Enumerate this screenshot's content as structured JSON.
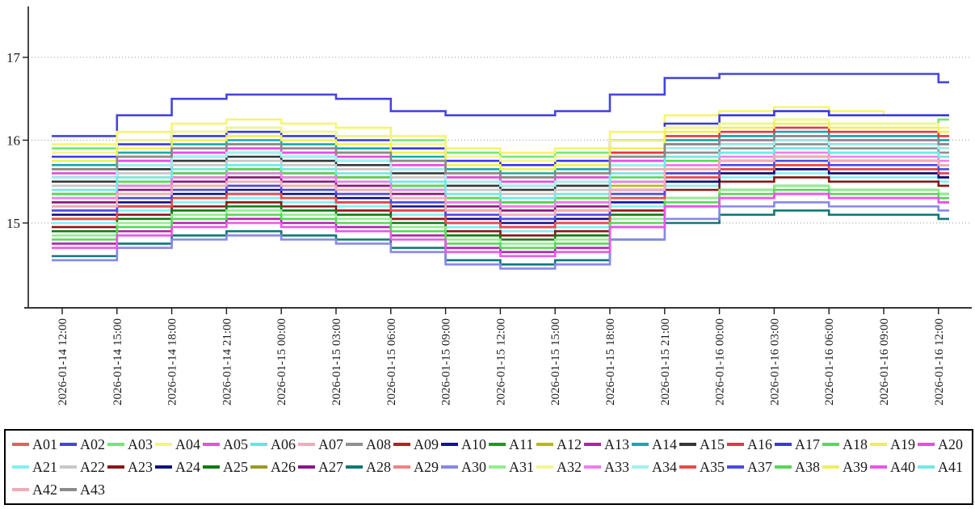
{
  "colors": {
    "background": "#ffffff",
    "axis": "#1a1a1a",
    "grid": "#999999",
    "tick_label": "#1a1a1a",
    "legend_border": "#000000"
  },
  "chart_data": {
    "type": "line",
    "step": true,
    "title": "",
    "xlabel": "",
    "ylabel": "",
    "grid": "horizontal-dotted",
    "legend_position": "bottom",
    "legend_items_per_row": 20,
    "ylim": [
      14.0,
      17.7
    ],
    "y_ticks": [
      15,
      16,
      17
    ],
    "x_tick_labels": [
      "2026-01-14 12:00",
      "2026-01-14 15:00",
      "2026-01-14 18:00",
      "2026-01-14 21:00",
      "2026-01-15 00:00",
      "2026-01-15 03:00",
      "2026-01-15 06:00",
      "2026-01-15 09:00",
      "2026-01-15 12:00",
      "2026-01-15 15:00",
      "2026-01-15 18:00",
      "2026-01-15 21:00",
      "2026-01-16 00:00",
      "2026-01-16 03:00",
      "2026-01-16 06:00",
      "2026-01-16 09:00",
      "2026-01-16 12:00"
    ],
    "series": [
      {
        "name": "A01",
        "color": "#e06060",
        "values": [
          15.6,
          15.75,
          15.85,
          15.9,
          15.85,
          15.8,
          15.7,
          15.55,
          15.5,
          15.55,
          15.8,
          16.0,
          16.05,
          16.1,
          16.05,
          16.05,
          16.0
        ]
      },
      {
        "name": "A02",
        "color": "#4545dd",
        "values": [
          16.05,
          16.3,
          16.5,
          16.55,
          16.55,
          16.5,
          16.35,
          16.3,
          16.3,
          16.35,
          16.55,
          16.75,
          16.8,
          16.8,
          16.8,
          16.8,
          16.7
        ]
      },
      {
        "name": "A03",
        "color": "#70e870",
        "values": [
          15.9,
          16.0,
          16.1,
          16.15,
          16.1,
          16.05,
          16.0,
          15.85,
          15.8,
          15.85,
          16.0,
          16.15,
          16.2,
          16.25,
          16.2,
          16.2,
          16.25
        ]
      },
      {
        "name": "A04",
        "color": "#f5f570",
        "values": [
          15.95,
          16.1,
          16.2,
          16.25,
          16.2,
          16.15,
          16.05,
          15.9,
          15.85,
          15.9,
          16.1,
          16.3,
          16.35,
          16.4,
          16.35,
          16.3,
          16.3
        ]
      },
      {
        "name": "A05",
        "color": "#dd55dd",
        "values": [
          15.55,
          15.7,
          15.8,
          15.85,
          15.8,
          15.75,
          15.65,
          15.5,
          15.45,
          15.5,
          15.75,
          15.95,
          16.0,
          16.05,
          16.0,
          16.0,
          15.95
        ]
      },
      {
        "name": "A06",
        "color": "#60e8e8",
        "values": [
          15.5,
          15.65,
          15.75,
          15.8,
          15.75,
          15.7,
          15.6,
          15.45,
          15.4,
          15.45,
          15.65,
          15.85,
          15.9,
          15.95,
          15.9,
          15.9,
          15.85
        ]
      },
      {
        "name": "A07",
        "color": "#f4aab9",
        "values": [
          15.45,
          15.6,
          15.7,
          15.75,
          15.7,
          15.65,
          15.55,
          15.4,
          15.35,
          15.4,
          15.65,
          15.85,
          15.95,
          16.0,
          15.95,
          15.95,
          15.9
        ]
      },
      {
        "name": "A08",
        "color": "#909090",
        "values": [
          15.55,
          15.7,
          15.8,
          15.85,
          15.8,
          15.75,
          15.65,
          15.5,
          15.45,
          15.5,
          15.7,
          15.85,
          15.9,
          15.95,
          15.9,
          15.9,
          15.85
        ]
      },
      {
        "name": "A09",
        "color": "#b22222",
        "values": [
          15.35,
          15.5,
          15.6,
          15.65,
          15.6,
          15.55,
          15.45,
          15.3,
          15.25,
          15.3,
          15.5,
          15.7,
          15.75,
          15.8,
          15.75,
          15.75,
          15.7
        ]
      },
      {
        "name": "A10",
        "color": "#1212a0",
        "values": [
          15.05,
          15.2,
          15.3,
          15.35,
          15.3,
          15.25,
          15.15,
          15.0,
          14.95,
          15.0,
          15.25,
          15.5,
          15.6,
          15.65,
          15.6,
          15.6,
          15.55
        ]
      },
      {
        "name": "A11",
        "color": "#15a015",
        "values": [
          15.3,
          15.45,
          15.55,
          15.6,
          15.55,
          15.5,
          15.4,
          15.25,
          15.2,
          15.25,
          15.5,
          15.7,
          15.75,
          15.8,
          15.75,
          15.75,
          15.7
        ]
      },
      {
        "name": "A12",
        "color": "#b8b815",
        "values": [
          15.25,
          15.4,
          15.5,
          15.55,
          15.5,
          15.45,
          15.35,
          15.2,
          15.15,
          15.2,
          15.45,
          15.65,
          15.75,
          15.8,
          15.75,
          15.75,
          15.7
        ]
      },
      {
        "name": "A13",
        "color": "#b020b0",
        "values": [
          14.75,
          14.9,
          15.0,
          15.05,
          15.0,
          14.95,
          14.85,
          14.7,
          14.65,
          14.7,
          14.95,
          15.2,
          15.3,
          15.35,
          15.3,
          15.3,
          15.25
        ]
      },
      {
        "name": "A14",
        "color": "#18a8a8",
        "values": [
          15.7,
          15.85,
          15.95,
          16.0,
          15.95,
          15.9,
          15.8,
          15.65,
          15.6,
          15.65,
          15.85,
          16.0,
          16.05,
          16.1,
          16.05,
          16.05,
          16.0
        ]
      },
      {
        "name": "A15",
        "color": "#383838",
        "values": [
          15.5,
          15.65,
          15.75,
          15.8,
          15.75,
          15.7,
          15.6,
          15.45,
          15.4,
          15.45,
          15.7,
          15.9,
          15.95,
          16.0,
          15.95,
          15.95,
          15.9
        ]
      },
      {
        "name": "A16",
        "color": "#e83838",
        "values": [
          15.65,
          15.8,
          15.9,
          15.95,
          15.9,
          15.85,
          15.75,
          15.6,
          15.55,
          15.6,
          15.85,
          16.05,
          16.1,
          16.15,
          16.1,
          16.1,
          16.05
        ]
      },
      {
        "name": "A17",
        "color": "#3838e8",
        "values": [
          15.8,
          15.95,
          16.05,
          16.1,
          16.05,
          16.0,
          15.9,
          15.75,
          15.7,
          15.75,
          16.0,
          16.2,
          16.3,
          16.35,
          16.3,
          16.3,
          16.3
        ]
      },
      {
        "name": "A18",
        "color": "#50de50",
        "values": [
          15.35,
          15.5,
          15.6,
          15.65,
          15.6,
          15.55,
          15.45,
          15.3,
          15.25,
          15.3,
          15.55,
          15.75,
          15.85,
          15.9,
          15.85,
          15.85,
          15.8
        ]
      },
      {
        "name": "A19",
        "color": "#eeee55",
        "values": [
          15.4,
          15.55,
          15.65,
          15.7,
          15.65,
          15.6,
          15.5,
          15.35,
          15.3,
          15.35,
          15.6,
          15.8,
          15.85,
          15.9,
          15.85,
          15.85,
          15.8
        ]
      },
      {
        "name": "A20",
        "color": "#e84ce8",
        "values": [
          15.6,
          15.75,
          15.85,
          15.9,
          15.85,
          15.8,
          15.7,
          15.55,
          15.5,
          15.55,
          15.75,
          15.95,
          16.0,
          16.05,
          16.0,
          16.0,
          15.95
        ]
      },
      {
        "name": "A21",
        "color": "#80f2f2",
        "values": [
          15.0,
          15.15,
          15.25,
          15.3,
          15.25,
          15.2,
          15.1,
          14.95,
          14.9,
          14.95,
          15.2,
          15.45,
          15.55,
          15.6,
          15.55,
          15.55,
          15.5
        ]
      },
      {
        "name": "A22",
        "color": "#c8c8c8",
        "values": [
          15.45,
          15.6,
          15.7,
          15.75,
          15.7,
          15.65,
          15.55,
          15.4,
          15.35,
          15.4,
          15.6,
          15.8,
          15.85,
          15.9,
          15.85,
          15.85,
          15.8
        ]
      },
      {
        "name": "A23",
        "color": "#8b1515",
        "values": [
          14.95,
          15.1,
          15.2,
          15.25,
          15.2,
          15.15,
          15.05,
          14.9,
          14.85,
          14.9,
          15.15,
          15.4,
          15.5,
          15.55,
          15.5,
          15.5,
          15.45
        ]
      },
      {
        "name": "A24",
        "color": "#10107e",
        "values": [
          15.1,
          15.25,
          15.35,
          15.4,
          15.35,
          15.3,
          15.2,
          15.05,
          15.0,
          15.05,
          15.3,
          15.5,
          15.6,
          15.65,
          15.6,
          15.6,
          15.55
        ]
      },
      {
        "name": "A25",
        "color": "#0e7a0e",
        "values": [
          14.9,
          15.05,
          15.15,
          15.2,
          15.15,
          15.1,
          15.0,
          14.85,
          14.8,
          14.85,
          15.1,
          15.3,
          15.4,
          15.45,
          15.4,
          15.4,
          15.35
        ]
      },
      {
        "name": "A26",
        "color": "#9a9a20",
        "values": [
          15.2,
          15.35,
          15.45,
          15.5,
          15.45,
          15.4,
          15.3,
          15.15,
          15.1,
          15.15,
          15.4,
          15.6,
          15.65,
          15.7,
          15.65,
          15.65,
          15.6
        ]
      },
      {
        "name": "A27",
        "color": "#8a158a",
        "values": [
          15.25,
          15.4,
          15.5,
          15.55,
          15.5,
          15.45,
          15.35,
          15.2,
          15.15,
          15.2,
          15.4,
          15.6,
          15.65,
          15.7,
          15.65,
          15.65,
          15.6
        ]
      },
      {
        "name": "A28",
        "color": "#0e7878",
        "values": [
          14.6,
          14.75,
          14.85,
          14.9,
          14.85,
          14.8,
          14.7,
          14.55,
          14.5,
          14.55,
          14.8,
          15.0,
          15.1,
          15.15,
          15.1,
          15.1,
          15.05
        ]
      },
      {
        "name": "A29",
        "color": "#f28282",
        "values": [
          15.15,
          15.3,
          15.4,
          15.45,
          15.4,
          15.35,
          15.25,
          15.1,
          15.05,
          15.1,
          15.35,
          15.55,
          15.65,
          15.7,
          15.65,
          15.65,
          15.6
        ]
      },
      {
        "name": "A30",
        "color": "#8787e8",
        "values": [
          14.55,
          14.7,
          14.8,
          14.85,
          14.8,
          14.75,
          14.65,
          14.5,
          14.45,
          14.5,
          14.8,
          15.05,
          15.2,
          15.25,
          15.2,
          15.2,
          15.15
        ]
      },
      {
        "name": "A31",
        "color": "#90ee90",
        "values": [
          14.85,
          15.0,
          15.1,
          15.15,
          15.1,
          15.05,
          14.95,
          14.8,
          14.75,
          14.8,
          15.05,
          15.3,
          15.4,
          15.45,
          15.4,
          15.4,
          15.35
        ]
      },
      {
        "name": "A32",
        "color": "#f5f58c",
        "values": [
          15.85,
          16.0,
          16.1,
          16.15,
          16.1,
          16.05,
          15.95,
          15.8,
          15.75,
          15.8,
          16.0,
          16.15,
          16.2,
          16.25,
          16.2,
          16.2,
          16.15
        ]
      },
      {
        "name": "A33",
        "color": "#f07cf0",
        "values": [
          15.3,
          15.45,
          15.55,
          15.6,
          15.55,
          15.5,
          15.4,
          15.25,
          15.2,
          15.25,
          15.5,
          15.7,
          15.8,
          15.85,
          15.8,
          15.8,
          15.75
        ]
      },
      {
        "name": "A34",
        "color": "#a0f2f2",
        "values": [
          15.55,
          15.7,
          15.8,
          15.85,
          15.8,
          15.75,
          15.65,
          15.5,
          15.45,
          15.5,
          15.7,
          15.9,
          15.95,
          16.0,
          15.95,
          15.95,
          15.9
        ]
      },
      {
        "name": "A35",
        "color": "#ea4a4a",
        "values": [
          15.05,
          15.2,
          15.3,
          15.35,
          15.3,
          15.25,
          15.15,
          15.0,
          14.95,
          15.0,
          15.3,
          15.55,
          15.65,
          15.7,
          15.65,
          15.65,
          15.6
        ]
      },
      {
        "name": "A37",
        "color": "#4a4aea",
        "values": [
          15.15,
          15.3,
          15.4,
          15.45,
          15.4,
          15.35,
          15.25,
          15.1,
          15.05,
          15.1,
          15.35,
          15.6,
          15.7,
          15.75,
          15.7,
          15.7,
          15.65
        ]
      },
      {
        "name": "A38",
        "color": "#55d855",
        "values": [
          14.8,
          14.95,
          15.05,
          15.1,
          15.05,
          15.0,
          14.9,
          14.75,
          14.7,
          14.75,
          15.0,
          15.25,
          15.35,
          15.4,
          15.35,
          15.35,
          15.3
        ]
      },
      {
        "name": "A39",
        "color": "#f0f055",
        "values": [
          15.75,
          15.9,
          16.0,
          16.05,
          16.0,
          15.95,
          15.85,
          15.7,
          15.65,
          15.7,
          15.9,
          16.1,
          16.15,
          16.2,
          16.15,
          16.15,
          16.1
        ]
      },
      {
        "name": "A40",
        "color": "#ea55ea",
        "values": [
          14.7,
          14.85,
          14.95,
          15.0,
          14.95,
          14.9,
          14.8,
          14.65,
          14.6,
          14.65,
          14.95,
          15.2,
          15.3,
          15.35,
          15.3,
          15.3,
          15.25
        ]
      },
      {
        "name": "A41",
        "color": "#70e9e9",
        "values": [
          15.4,
          15.55,
          15.65,
          15.7,
          15.65,
          15.6,
          15.5,
          15.35,
          15.3,
          15.35,
          15.6,
          15.8,
          15.85,
          15.9,
          15.85,
          15.85,
          15.8
        ]
      },
      {
        "name": "A42",
        "color": "#f2abb9",
        "values": [
          15.2,
          15.35,
          15.45,
          15.5,
          15.45,
          15.4,
          15.3,
          15.15,
          15.1,
          15.15,
          15.4,
          15.65,
          15.75,
          15.8,
          15.75,
          15.75,
          15.7
        ]
      },
      {
        "name": "A43",
        "color": "#8a8a8a",
        "values": [
          15.65,
          15.8,
          15.9,
          15.95,
          15.9,
          15.85,
          15.75,
          15.6,
          15.55,
          15.6,
          15.8,
          15.95,
          16.0,
          16.05,
          16.0,
          16.0,
          15.95
        ]
      }
    ]
  }
}
